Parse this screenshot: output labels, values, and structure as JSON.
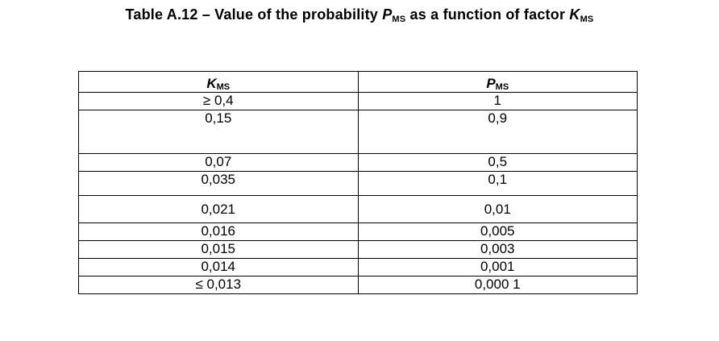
{
  "caption": {
    "prefix": "Table A.12 – Value of the probability ",
    "p_symbol": "P",
    "p_sub": "MS",
    "middle": " as a function of factor ",
    "k_symbol": "K",
    "k_sub": "MS"
  },
  "table": {
    "headers": [
      {
        "symbol": "K",
        "sub": "MS"
      },
      {
        "symbol": "P",
        "sub": "MS"
      }
    ],
    "rows": [
      [
        "≥ 0,4",
        "1"
      ],
      [
        "0,15",
        "0,9"
      ],
      [
        "0,07",
        "0,5"
      ],
      [
        "0,035",
        "0,1"
      ],
      [
        "0,021",
        "0,01"
      ],
      [
        "0,016",
        "0,005"
      ],
      [
        "0,015",
        "0,003"
      ],
      [
        "0,014",
        "0,001"
      ],
      [
        "≤ 0,013",
        "0,000 1"
      ]
    ]
  }
}
